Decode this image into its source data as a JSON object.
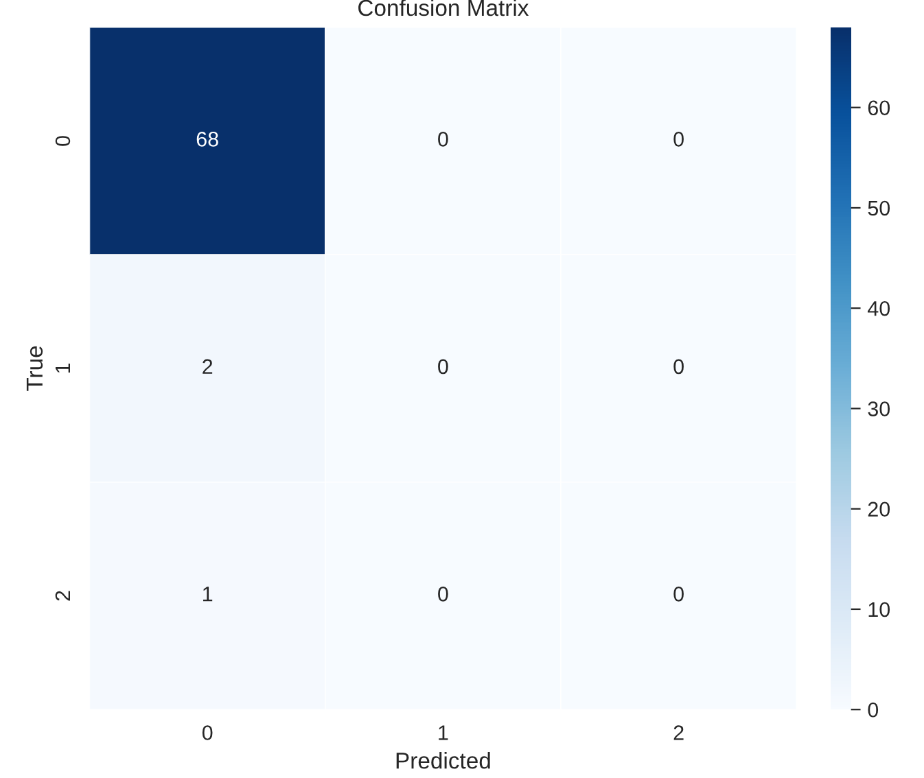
{
  "chart_data": {
    "type": "heatmap",
    "title": "Confusion Matrix",
    "xlabel": "Predicted",
    "ylabel": "True",
    "categories": [
      "0",
      "1",
      "2"
    ],
    "y_categories": [
      "0",
      "1",
      "2"
    ],
    "cells": [
      [
        68,
        0,
        0
      ],
      [
        2,
        0,
        0
      ],
      [
        1,
        0,
        0
      ]
    ],
    "clim": [
      0,
      68
    ],
    "cticks": [
      0,
      10,
      20,
      30,
      40,
      50,
      60
    ],
    "data_labels": true,
    "grid": false
  }
}
